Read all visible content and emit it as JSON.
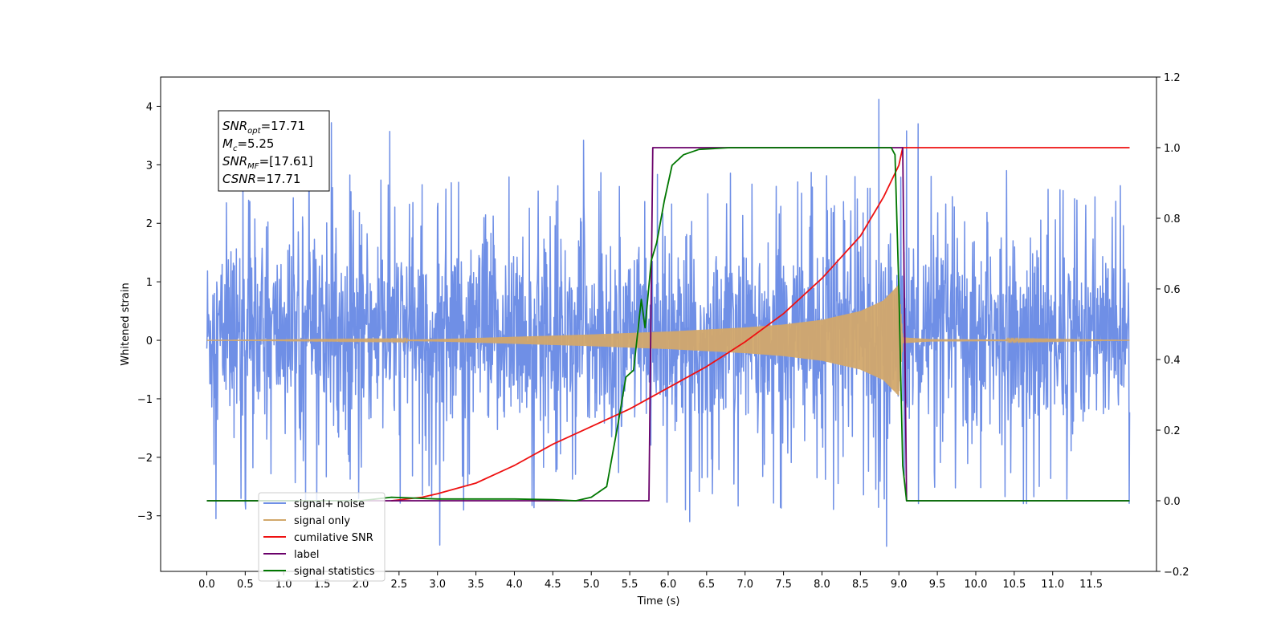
{
  "chart_data": {
    "type": "line",
    "xlabel": "Time (s)",
    "ylabel_left": "Whitened strain",
    "ylabel_right": "",
    "xlim": [
      -0.6,
      12.35
    ],
    "ylim_left": [
      -3.95,
      4.5
    ],
    "ylim_right": [
      -0.2,
      1.2
    ],
    "x_ticks": [
      "0.0",
      "0.5",
      "1.0",
      "1.5",
      "2.0",
      "2.5",
      "3.0",
      "3.5",
      "4.0",
      "4.5",
      "5.0",
      "5.5",
      "6.0",
      "6.5",
      "7.0",
      "7.5",
      "8.0",
      "8.5",
      "9.0",
      "9.5",
      "10.0",
      "10.5",
      "11.0",
      "11.5"
    ],
    "y_ticks_left": [
      "−3",
      "−2",
      "−1",
      "0",
      "1",
      "2",
      "3",
      "4"
    ],
    "y_ticks_right": [
      "−0.2",
      "0.0",
      "0.2",
      "0.4",
      "0.6",
      "0.8",
      "1.0",
      "1.2"
    ],
    "grid": false,
    "legend_position": "lower-left",
    "annotation": {
      "lines": [
        {
          "base": "SNR",
          "sub": "opt",
          "rest": "=17.71"
        },
        {
          "base": "M",
          "sub": "c",
          "rest": "=5.25"
        },
        {
          "base": "SNR",
          "sub": "MF",
          "rest": "=[17.61]"
        },
        {
          "base": "CSNR",
          "sub": "",
          "rest": "=17.71"
        }
      ]
    },
    "series": [
      {
        "name": "signal+ noise",
        "axis": "left",
        "color": "#6f8fe6",
        "kind": "noise",
        "x_range": [
          0.0,
          12.0
        ],
        "typical_band": [
          -1.4,
          1.6
        ],
        "spikes": [
          {
            "x": 0.12,
            "y": -3.05
          },
          {
            "x": 1.33,
            "y": 3.7
          },
          {
            "x": 1.62,
            "y": 3.72
          },
          {
            "x": 2.38,
            "y": 3.57
          },
          {
            "x": 3.03,
            "y": -3.5
          },
          {
            "x": 4.9,
            "y": 3.42
          },
          {
            "x": 6.28,
            "y": -3.1
          },
          {
            "x": 8.74,
            "y": 4.12
          },
          {
            "x": 8.84,
            "y": -3.52
          },
          {
            "x": 9.25,
            "y": 3.7
          },
          {
            "x": 9.1,
            "y": 3.58
          },
          {
            "x": 10.4,
            "y": 2.9
          }
        ]
      },
      {
        "name": "signal only",
        "axis": "left",
        "color": "#d2a86b",
        "kind": "chirp",
        "envelope": [
          [
            0.0,
            0.0
          ],
          [
            2.5,
            0.01
          ],
          [
            3.0,
            0.02
          ],
          [
            4.0,
            0.06
          ],
          [
            5.0,
            0.1
          ],
          [
            6.0,
            0.15
          ],
          [
            7.0,
            0.22
          ],
          [
            7.5,
            0.27
          ],
          [
            8.0,
            0.35
          ],
          [
            8.5,
            0.5
          ],
          [
            8.8,
            0.68
          ],
          [
            9.0,
            0.95
          ],
          [
            9.05,
            0.05
          ],
          [
            9.4,
            0.02
          ],
          [
            12.0,
            0.0
          ]
        ]
      },
      {
        "name": "cumilative SNR",
        "axis": "right",
        "color": "#ee1111",
        "x": [
          2.4,
          2.8,
          3.0,
          3.5,
          4.0,
          4.5,
          5.0,
          5.5,
          6.0,
          6.5,
          7.0,
          7.5,
          8.0,
          8.5,
          8.8,
          9.0,
          9.05,
          12.0
        ],
        "values": [
          0.0,
          0.01,
          0.02,
          0.05,
          0.1,
          0.16,
          0.21,
          0.26,
          0.32,
          0.38,
          0.45,
          0.53,
          0.63,
          0.75,
          0.86,
          0.95,
          1.0,
          1.0
        ]
      },
      {
        "name": "label",
        "axis": "right",
        "color": "#6a006a",
        "x": [
          0.0,
          5.75,
          5.8,
          9.05,
          9.1,
          12.0
        ],
        "values": [
          0.0,
          0.0,
          1.0,
          1.0,
          0.0,
          0.0
        ]
      },
      {
        "name": "signal statistics",
        "axis": "right",
        "color": "#007700",
        "x": [
          0.0,
          2.0,
          2.4,
          3.0,
          4.0,
          4.5,
          4.8,
          5.0,
          5.2,
          5.35,
          5.45,
          5.55,
          5.65,
          5.7,
          5.78,
          5.85,
          5.95,
          6.05,
          6.2,
          6.4,
          6.8,
          8.0,
          8.9,
          8.95,
          9.0,
          9.05,
          9.1,
          12.0
        ],
        "values": [
          0.0,
          0.0,
          0.01,
          0.005,
          0.005,
          0.003,
          0.0,
          0.01,
          0.04,
          0.22,
          0.35,
          0.37,
          0.57,
          0.49,
          0.68,
          0.73,
          0.85,
          0.95,
          0.98,
          0.995,
          1.0,
          1.0,
          1.0,
          0.98,
          0.6,
          0.1,
          0.0,
          0.0
        ]
      }
    ]
  }
}
